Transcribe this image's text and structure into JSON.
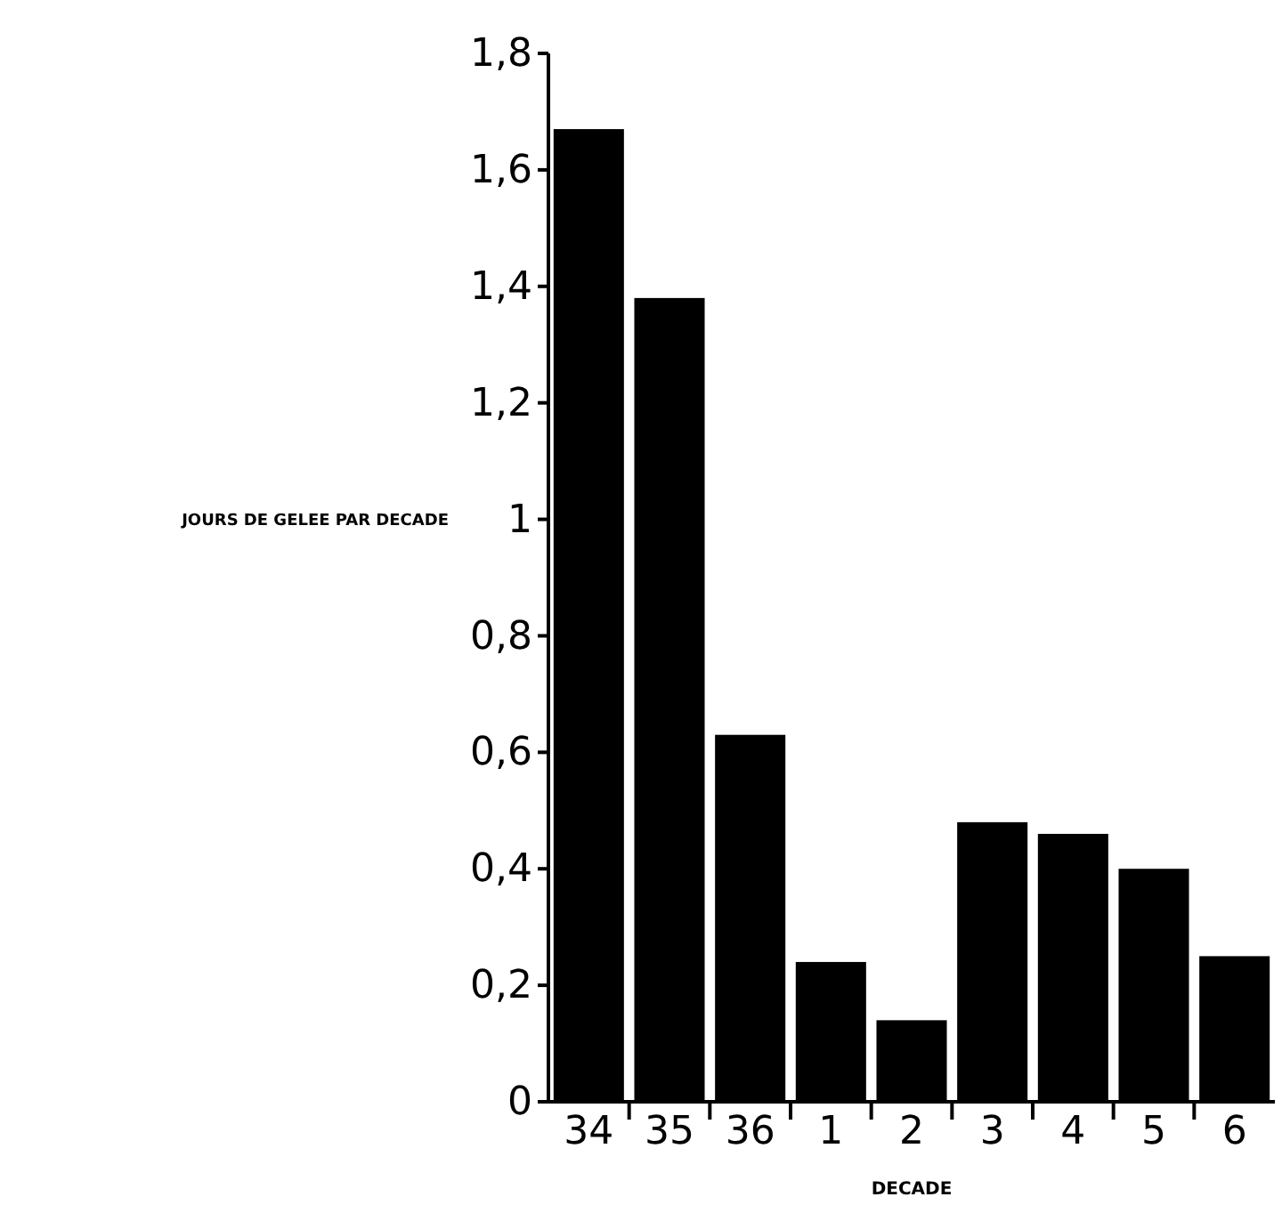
{
  "chart_data": {
    "type": "bar",
    "xlabel": "DECADE",
    "ylabel": "JOURS DE GELEE PAR DECADE",
    "categories": [
      "34",
      "35",
      "36",
      "1",
      "2",
      "3",
      "4",
      "5",
      "6"
    ],
    "values": [
      1.67,
      1.38,
      0.63,
      0.24,
      0.14,
      0.48,
      0.46,
      0.4,
      0.25
    ],
    "color": "#000000",
    "ylim": [
      0,
      1.8
    ],
    "yticks": [
      {
        "value": 0,
        "label": "0"
      },
      {
        "value": 0.2,
        "label": "0,2"
      },
      {
        "value": 0.4,
        "label": "0,4"
      },
      {
        "value": 0.6,
        "label": "0,6"
      },
      {
        "value": 0.8,
        "label": "0,8"
      },
      {
        "value": 1,
        "label": "1"
      },
      {
        "value": 1.2,
        "label": "1,2"
      },
      {
        "value": 1.4,
        "label": "1,4"
      },
      {
        "value": 1.6,
        "label": "1,6"
      },
      {
        "value": 1.8,
        "label": "1,8"
      }
    ],
    "grid": false
  }
}
